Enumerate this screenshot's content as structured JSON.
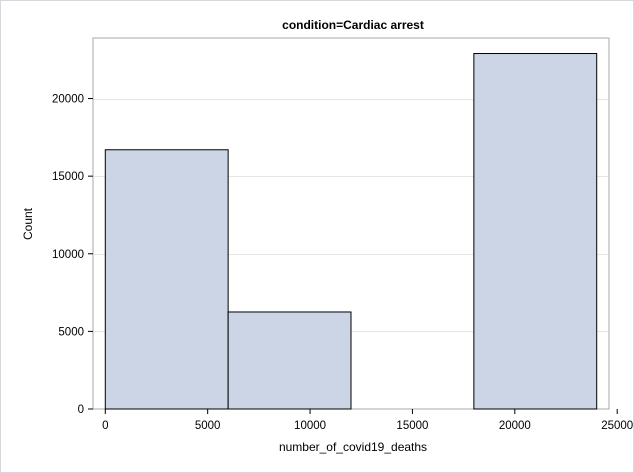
{
  "chart_data": {
    "type": "bar",
    "title": "condition=Cardiac arrest",
    "xlabel": "number_of_covid19_deaths",
    "ylabel": "Count",
    "bins": [
      {
        "x_start": 0,
        "x_end": 6000,
        "count": 16700
      },
      {
        "x_start": 6000,
        "x_end": 12000,
        "count": 6250
      },
      {
        "x_start": 12000,
        "x_end": 18000,
        "count": 0
      },
      {
        "x_start": 18000,
        "x_end": 24000,
        "count": 22900
      }
    ],
    "xlim": [
      -600,
      24600
    ],
    "ylim": [
      0,
      23900
    ],
    "xticks": [
      0,
      5000,
      10000,
      15000,
      20000,
      25000
    ],
    "xtick_labels": [
      "0",
      "5000",
      "10000",
      "15000",
      "20000",
      "25000"
    ],
    "yticks": [
      0,
      5000,
      10000,
      15000,
      20000
    ],
    "ytick_labels": [
      "0",
      "5000",
      "10000",
      "15000",
      "20000"
    ],
    "grid": "horizontal",
    "colors": {
      "bar_fill": "#cbd5e5",
      "bar_stroke": "#000000",
      "grid": "#e6e6e6",
      "frame": "#a8a8a8",
      "page_border": "#d3d7e2"
    }
  }
}
